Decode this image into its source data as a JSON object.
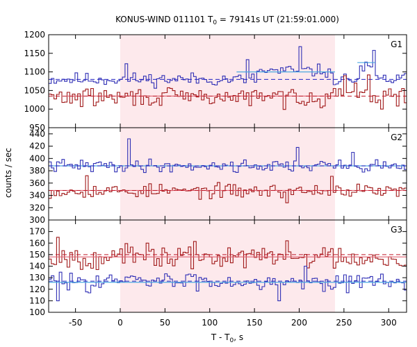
{
  "chart_data": {
    "type": "line",
    "title_prefix": "KONUS-WIND 011101 T",
    "title_sub": "0",
    "title_suffix": " = 79141s UT (21:59:01.000)",
    "xlabel_main": "T - T",
    "xlabel_sub": "0",
    "xlabel_suffix": ", s",
    "ylabel": "counts / sec",
    "xlim": [
      -80,
      320
    ],
    "x_ticks": [
      -50,
      0,
      50,
      100,
      150,
      200,
      250,
      300
    ],
    "x_tick_labels": [
      "-50",
      "0",
      "50",
      "100",
      "150",
      "200",
      "250",
      "300"
    ],
    "shaded_interval": [
      0,
      240
    ],
    "colors": {
      "shade": "#fde9ec",
      "blue": "#2f2fb5",
      "red": "#a01818",
      "fit_blue": "#4aa8e0",
      "fit_red": "#e06070",
      "dash_blue": "#2020c0",
      "dash_red": "#c01828"
    },
    "panels": [
      {
        "label": "G1",
        "ylim": [
          950,
          1200
        ],
        "y_ticks": [
          950,
          1000,
          1050,
          1100,
          1150,
          1200
        ],
        "y_tick_labels": [
          "950",
          "1000",
          "1050",
          "1100",
          "1150",
          "1200"
        ],
        "series": [
          {
            "color": "blue",
            "base": 1080,
            "amp": 14,
            "seed": 11,
            "bumps": [
              {
                "x": [
                  150,
                  235
                ],
                "add": 22
              },
              {
                "x": [
                  265,
                  282
                ],
                "add": 30
              }
            ],
            "spikes": [
              {
                "x": 200,
                "y": 1168
              },
              {
                "x": 282,
                "y": 1158
              },
              {
                "x": 142,
                "y": 1133
              },
              {
                "x": 6,
                "y": 1122
              }
            ],
            "fit": [
              {
                "x0": 130,
                "x1": 240,
                "y": 1100
              },
              {
                "x0": 265,
                "x1": 285,
                "y": 1125
              }
            ],
            "dashed": 1080
          },
          {
            "color": "red",
            "base": 1032,
            "amp": 20,
            "seed": 29,
            "bumps": [
              {
                "x": [
                  230,
                  285
                ],
                "add": 12
              }
            ],
            "spikes": [
              {
                "x": 276,
                "y": 1092
              },
              {
                "x": 250,
                "y": 1090
              },
              {
                "x": 290,
                "y": 1000
              }
            ],
            "fit": [
              {
                "x0": -60,
                "x1": 240,
                "y": 1035
              }
            ],
            "dashed": 1035
          }
        ]
      },
      {
        "label": "G2",
        "ylim": [
          300,
          450
        ],
        "y_ticks": [
          300,
          320,
          340,
          360,
          380,
          400,
          420,
          440
        ],
        "y_tick_labels": [
          "300",
          "320",
          "340",
          "360",
          "380",
          "400",
          "420",
          "440"
        ],
        "series": [
          {
            "color": "blue",
            "base": 388,
            "amp": 8,
            "seed": 41,
            "bumps": [],
            "spikes": [
              {
                "x": 8,
                "y": 432
              },
              {
                "x": 196,
                "y": 418
              },
              {
                "x": 260,
                "y": 410
              }
            ],
            "fit": [
              {
                "x0": -80,
                "x1": 320,
                "y": 388
              }
            ],
            "dashed": 388
          },
          {
            "color": "red",
            "base": 347,
            "amp": 9,
            "seed": 53,
            "bumps": [],
            "spikes": [
              {
                "x": -38,
                "y": 372
              },
              {
                "x": 236,
                "y": 371
              },
              {
                "x": 186,
                "y": 328
              }
            ],
            "fit": [
              {
                "x0": -80,
                "x1": 320,
                "y": 348
              }
            ],
            "dashed": 348
          }
        ]
      },
      {
        "label": "G3",
        "ylim": [
          100,
          180
        ],
        "y_ticks": [
          100,
          110,
          120,
          130,
          140,
          150,
          160,
          170
        ],
        "y_tick_labels": [
          "100",
          "110",
          "120",
          "130",
          "140",
          "150",
          "160",
          "170"
        ],
        "series": [
          {
            "color": "red",
            "base": 148,
            "amp": 8,
            "seed": 67,
            "bumps": [],
            "spikes": [
              {
                "x": -72,
                "y": 165
              },
              {
                "x": 185,
                "y": 162
              },
              {
                "x": 30,
                "y": 160
              }
            ],
            "fit": [
              {
                "x0": -80,
                "x1": 320,
                "y": 148
              }
            ],
            "dashed": 150
          },
          {
            "color": "blue",
            "base": 127,
            "amp": 6,
            "seed": 83,
            "bumps": [],
            "spikes": [
              {
                "x": -72,
                "y": 110
              },
              {
                "x": 175,
                "y": 110
              },
              {
                "x": 205,
                "y": 140
              }
            ],
            "fit": [
              {
                "x0": -80,
                "x1": 320,
                "y": 126
              }
            ],
            "dashed": 127
          }
        ]
      }
    ]
  }
}
